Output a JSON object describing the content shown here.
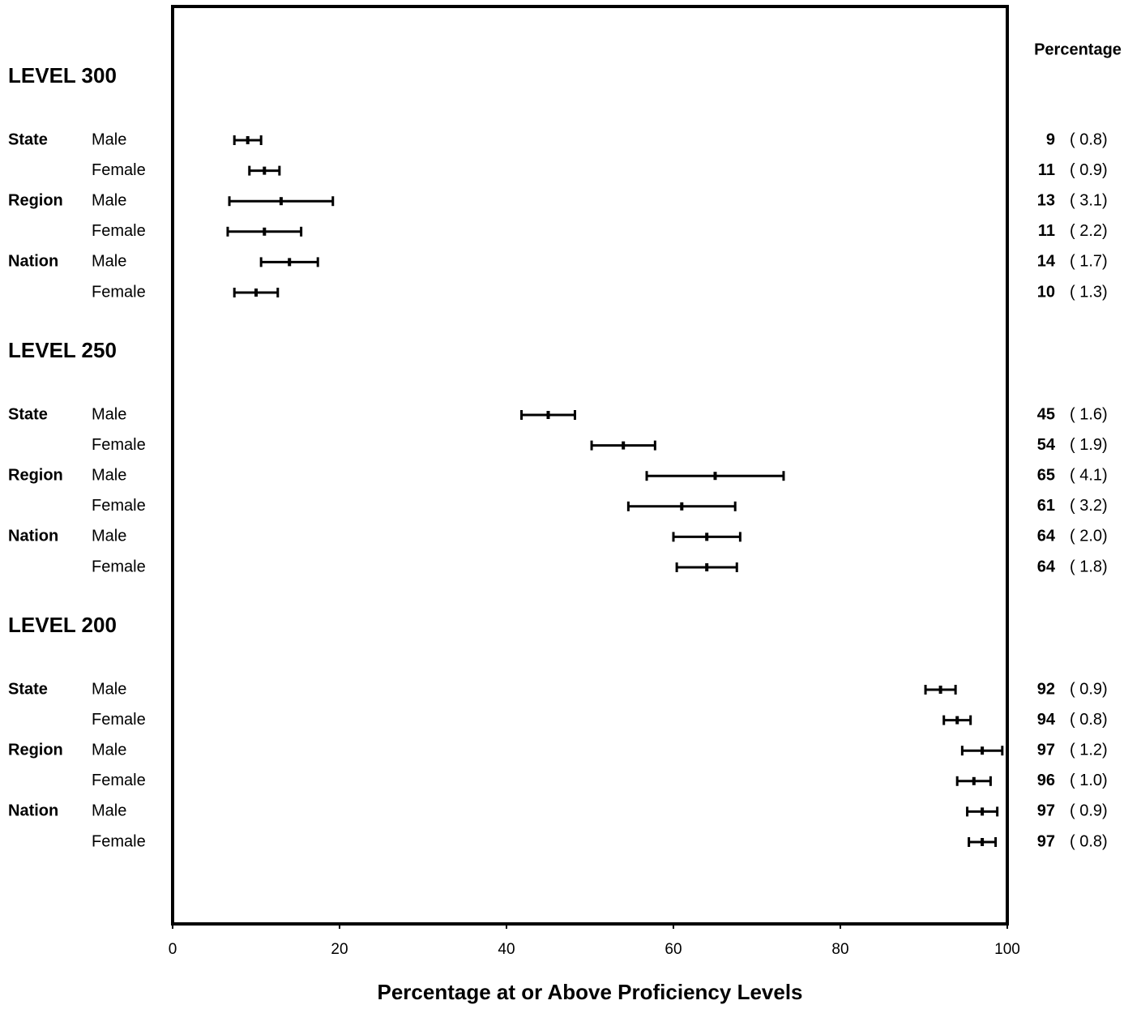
{
  "chart_data": {
    "type": "errorbar",
    "value_header": "Percentage",
    "xlabel": "Percentage at or Above Proficiency Levels",
    "xlim": [
      0,
      100
    ],
    "xticks": [
      0,
      20,
      40,
      60,
      80,
      100
    ],
    "groups": [
      "State",
      "Region",
      "Nation"
    ],
    "subgroups": [
      "Male",
      "Female"
    ],
    "color": "#000000",
    "levels": [
      {
        "title": "LEVEL 300",
        "values": [
          9,
          11,
          13,
          11,
          14,
          10
        ],
        "errors": [
          0.8,
          0.9,
          3.1,
          2.2,
          1.7,
          1.3
        ],
        "error_labels": [
          "( 0.8)",
          "( 0.9)",
          "( 3.1)",
          "( 2.2)",
          "( 1.7)",
          "( 1.3)"
        ]
      },
      {
        "title": "LEVEL 250",
        "values": [
          45,
          54,
          65,
          61,
          64,
          64
        ],
        "errors": [
          1.6,
          1.9,
          4.1,
          3.2,
          2.0,
          1.8
        ],
        "error_labels": [
          "( 1.6)",
          "( 1.9)",
          "( 4.1)",
          "( 3.2)",
          "( 2.0)",
          "( 1.8)"
        ]
      },
      {
        "title": "LEVEL 200",
        "values": [
          92,
          94,
          97,
          96,
          97,
          97
        ],
        "errors": [
          0.9,
          0.8,
          1.2,
          1.0,
          0.9,
          0.8
        ],
        "error_labels": [
          "( 0.9)",
          "( 0.8)",
          "( 1.2)",
          "( 1.0)",
          "( 0.9)",
          "( 0.8)"
        ]
      }
    ]
  }
}
